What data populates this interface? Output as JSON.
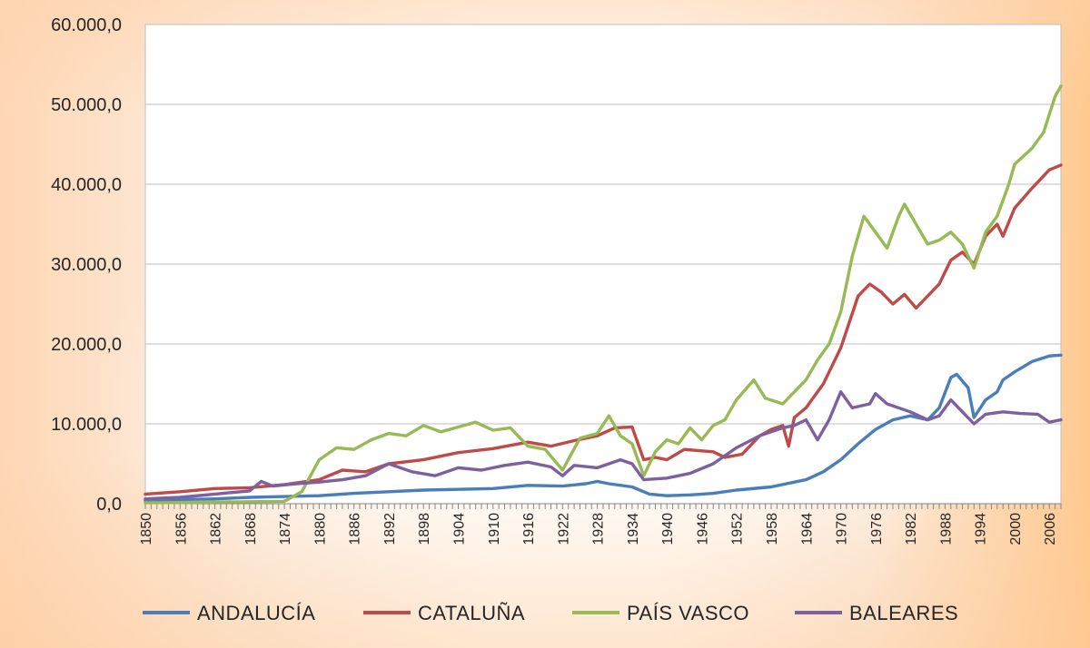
{
  "chart_data": {
    "type": "line",
    "title": "",
    "xlabel": "",
    "ylabel": "",
    "ylim": [
      0,
      60000
    ],
    "yticks": [
      {
        "value": 0,
        "label": "0,0"
      },
      {
        "value": 10000,
        "label": "10.000,0"
      },
      {
        "value": 20000,
        "label": "20.000,0"
      },
      {
        "value": 30000,
        "label": "30.000,0"
      },
      {
        "value": 40000,
        "label": "40.000,0"
      },
      {
        "value": 50000,
        "label": "50.000,0"
      },
      {
        "value": 60000,
        "label": "60.000,0"
      }
    ],
    "xlim": [
      1850,
      2008
    ],
    "xticks": [
      "1850",
      "1856",
      "1862",
      "1868",
      "1874",
      "1880",
      "1886",
      "1892",
      "1898",
      "1904",
      "1910",
      "1916",
      "1922",
      "1928",
      "1934",
      "1940",
      "1946",
      "1952",
      "1958",
      "1964",
      "1970",
      "1976",
      "1982",
      "1988",
      "1994",
      "2000",
      "2006"
    ],
    "grid": true,
    "legend_position": "bottom",
    "series": [
      {
        "name": "ANDALUCÍA",
        "color": "#4a7ebb",
        "points": [
          [
            1850,
            400
          ],
          [
            1856,
            500
          ],
          [
            1862,
            600
          ],
          [
            1868,
            800
          ],
          [
            1874,
            900
          ],
          [
            1880,
            1000
          ],
          [
            1886,
            1300
          ],
          [
            1892,
            1500
          ],
          [
            1898,
            1700
          ],
          [
            1904,
            1800
          ],
          [
            1910,
            1900
          ],
          [
            1916,
            2300
          ],
          [
            1922,
            2200
          ],
          [
            1926,
            2500
          ],
          [
            1928,
            2800
          ],
          [
            1930,
            2500
          ],
          [
            1934,
            2100
          ],
          [
            1937,
            1200
          ],
          [
            1940,
            1000
          ],
          [
            1944,
            1100
          ],
          [
            1948,
            1300
          ],
          [
            1952,
            1700
          ],
          [
            1958,
            2100
          ],
          [
            1964,
            3000
          ],
          [
            1967,
            4000
          ],
          [
            1970,
            5500
          ],
          [
            1973,
            7500
          ],
          [
            1976,
            9300
          ],
          [
            1979,
            10500
          ],
          [
            1982,
            11000
          ],
          [
            1985,
            10500
          ],
          [
            1987,
            12000
          ],
          [
            1989,
            15800
          ],
          [
            1990,
            16200
          ],
          [
            1992,
            14500
          ],
          [
            1993,
            10800
          ],
          [
            1995,
            13000
          ],
          [
            1997,
            14000
          ],
          [
            1998,
            15500
          ],
          [
            2000,
            16500
          ],
          [
            2003,
            17800
          ],
          [
            2006,
            18500
          ],
          [
            2008,
            18600
          ]
        ]
      },
      {
        "name": "CATALUÑA",
        "color": "#be4b48",
        "points": [
          [
            1850,
            1200
          ],
          [
            1856,
            1500
          ],
          [
            1862,
            1900
          ],
          [
            1868,
            2000
          ],
          [
            1874,
            2400
          ],
          [
            1880,
            3000
          ],
          [
            1884,
            4200
          ],
          [
            1888,
            4000
          ],
          [
            1892,
            5000
          ],
          [
            1898,
            5500
          ],
          [
            1904,
            6400
          ],
          [
            1910,
            6900
          ],
          [
            1916,
            7700
          ],
          [
            1920,
            7200
          ],
          [
            1924,
            7900
          ],
          [
            1928,
            8500
          ],
          [
            1931,
            9500
          ],
          [
            1934,
            9600
          ],
          [
            1936,
            5500
          ],
          [
            1938,
            5800
          ],
          [
            1940,
            5500
          ],
          [
            1943,
            6800
          ],
          [
            1948,
            6500
          ],
          [
            1950,
            5800
          ],
          [
            1953,
            6200
          ],
          [
            1956,
            8500
          ],
          [
            1958,
            9300
          ],
          [
            1960,
            9800
          ],
          [
            1961,
            7200
          ],
          [
            1962,
            10800
          ],
          [
            1964,
            12000
          ],
          [
            1967,
            15000
          ],
          [
            1970,
            19500
          ],
          [
            1973,
            26000
          ],
          [
            1975,
            27500
          ],
          [
            1977,
            26500
          ],
          [
            1979,
            25000
          ],
          [
            1981,
            26200
          ],
          [
            1983,
            24500
          ],
          [
            1985,
            26000
          ],
          [
            1987,
            27500
          ],
          [
            1989,
            30500
          ],
          [
            1991,
            31500
          ],
          [
            1993,
            30000
          ],
          [
            1995,
            33500
          ],
          [
            1997,
            35000
          ],
          [
            1998,
            33500
          ],
          [
            2000,
            37000
          ],
          [
            2003,
            39500
          ],
          [
            2006,
            41800
          ],
          [
            2008,
            42400
          ]
        ]
      },
      {
        "name": "PAÍS VASCO",
        "color": "#98b954",
        "points": [
          [
            1850,
            100
          ],
          [
            1856,
            150
          ],
          [
            1862,
            200
          ],
          [
            1868,
            250
          ],
          [
            1874,
            300
          ],
          [
            1877,
            1500
          ],
          [
            1880,
            5500
          ],
          [
            1883,
            7000
          ],
          [
            1886,
            6800
          ],
          [
            1889,
            8000
          ],
          [
            1892,
            8800
          ],
          [
            1895,
            8500
          ],
          [
            1898,
            9800
          ],
          [
            1901,
            9000
          ],
          [
            1904,
            9600
          ],
          [
            1907,
            10200
          ],
          [
            1910,
            9200
          ],
          [
            1913,
            9500
          ],
          [
            1916,
            7200
          ],
          [
            1919,
            6800
          ],
          [
            1922,
            4200
          ],
          [
            1925,
            8200
          ],
          [
            1928,
            8800
          ],
          [
            1930,
            11000
          ],
          [
            1932,
            8500
          ],
          [
            1934,
            7500
          ],
          [
            1936,
            3500
          ],
          [
            1938,
            6500
          ],
          [
            1940,
            8000
          ],
          [
            1942,
            7500
          ],
          [
            1944,
            9500
          ],
          [
            1946,
            8000
          ],
          [
            1948,
            9800
          ],
          [
            1950,
            10500
          ],
          [
            1952,
            13000
          ],
          [
            1955,
            15500
          ],
          [
            1957,
            13200
          ],
          [
            1960,
            12500
          ],
          [
            1962,
            14000
          ],
          [
            1964,
            15500
          ],
          [
            1966,
            18000
          ],
          [
            1968,
            20000
          ],
          [
            1970,
            24000
          ],
          [
            1972,
            31000
          ],
          [
            1974,
            36000
          ],
          [
            1976,
            34000
          ],
          [
            1978,
            32000
          ],
          [
            1980,
            36000
          ],
          [
            1981,
            37500
          ],
          [
            1983,
            35000
          ],
          [
            1985,
            32500
          ],
          [
            1987,
            33000
          ],
          [
            1989,
            34000
          ],
          [
            1991,
            32500
          ],
          [
            1993,
            29500
          ],
          [
            1995,
            34000
          ],
          [
            1997,
            36000
          ],
          [
            1999,
            40000
          ],
          [
            2000,
            42500
          ],
          [
            2003,
            44500
          ],
          [
            2005,
            46500
          ],
          [
            2007,
            51000
          ],
          [
            2008,
            52300
          ]
        ]
      },
      {
        "name": "BALEARES",
        "color": "#7d60a0",
        "points": [
          [
            1850,
            600
          ],
          [
            1856,
            800
          ],
          [
            1862,
            1200
          ],
          [
            1868,
            1600
          ],
          [
            1870,
            2800
          ],
          [
            1872,
            2200
          ],
          [
            1876,
            2500
          ],
          [
            1880,
            2700
          ],
          [
            1884,
            3000
          ],
          [
            1888,
            3500
          ],
          [
            1892,
            5000
          ],
          [
            1896,
            4000
          ],
          [
            1900,
            3500
          ],
          [
            1904,
            4500
          ],
          [
            1908,
            4200
          ],
          [
            1912,
            4800
          ],
          [
            1916,
            5200
          ],
          [
            1920,
            4600
          ],
          [
            1922,
            3500
          ],
          [
            1924,
            4800
          ],
          [
            1928,
            4500
          ],
          [
            1932,
            5500
          ],
          [
            1934,
            5000
          ],
          [
            1936,
            3000
          ],
          [
            1940,
            3200
          ],
          [
            1944,
            3800
          ],
          [
            1948,
            5000
          ],
          [
            1952,
            7000
          ],
          [
            1956,
            8500
          ],
          [
            1960,
            9500
          ],
          [
            1962,
            9800
          ],
          [
            1964,
            10500
          ],
          [
            1966,
            8000
          ],
          [
            1968,
            10500
          ],
          [
            1970,
            14000
          ],
          [
            1972,
            12000
          ],
          [
            1975,
            12500
          ],
          [
            1976,
            13800
          ],
          [
            1978,
            12500
          ],
          [
            1982,
            11500
          ],
          [
            1985,
            10500
          ],
          [
            1987,
            11000
          ],
          [
            1989,
            13000
          ],
          [
            1991,
            11500
          ],
          [
            1993,
            10000
          ],
          [
            1995,
            11200
          ],
          [
            1998,
            11500
          ],
          [
            2001,
            11300
          ],
          [
            2004,
            11200
          ],
          [
            2006,
            10200
          ],
          [
            2008,
            10500
          ]
        ]
      }
    ]
  }
}
